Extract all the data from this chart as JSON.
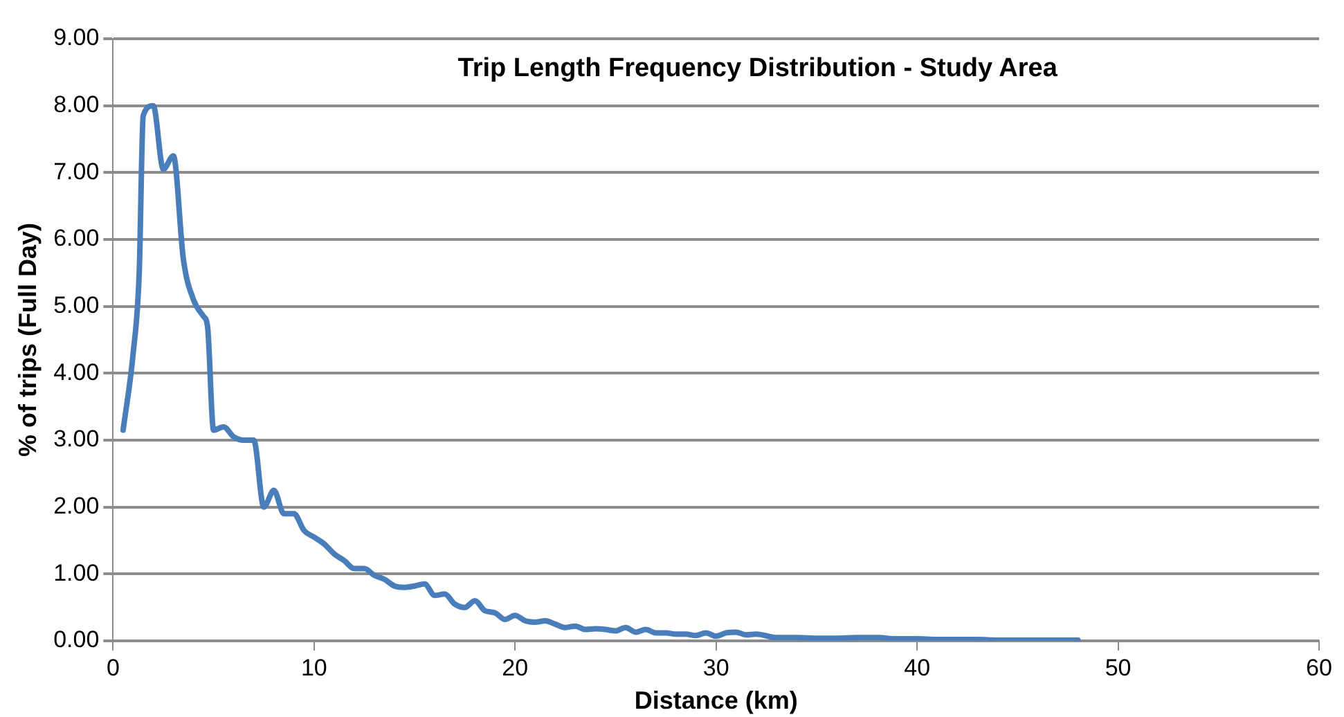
{
  "chart_data": {
    "type": "line",
    "title": "Trip Length Frequency Distribution - Study Area",
    "xlabel": "Distance (km)",
    "ylabel": "% of trips (Full Day)",
    "xlim": [
      0,
      60
    ],
    "xticks": [
      0,
      10,
      20,
      30,
      40,
      50,
      60
    ],
    "ylim": [
      0,
      9
    ],
    "yticks": [
      {
        "value": 0,
        "label": "0.00"
      },
      {
        "value": 1,
        "label": "1.00"
      },
      {
        "value": 2,
        "label": "2.00"
      },
      {
        "value": 3,
        "label": "3.00"
      },
      {
        "value": 4,
        "label": "4.00"
      },
      {
        "value": 5,
        "label": "5.00"
      },
      {
        "value": 6,
        "label": "6.00"
      },
      {
        "value": 7,
        "label": "7.00"
      },
      {
        "value": 8,
        "label": "8.00"
      },
      {
        "value": 9,
        "label": "9.00"
      }
    ],
    "grid": "y",
    "legend": false,
    "marker": "none",
    "line_style": "solid",
    "series": [
      {
        "color": "#4a7ebb",
        "x": [
          0.5,
          1.0,
          1.3,
          1.5,
          2.0,
          2.5,
          3.0,
          3.5,
          4.0,
          4.5,
          4.7,
          5.0,
          5.5,
          6.0,
          6.5,
          7.0,
          7.5,
          8.0,
          8.5,
          9.0,
          9.5,
          10,
          10.5,
          11,
          11.5,
          12,
          12.5,
          13,
          13.5,
          14,
          14.5,
          15,
          15.5,
          16,
          16.5,
          17,
          17.5,
          18,
          18.5,
          19,
          19.5,
          20,
          20.5,
          21,
          21.5,
          22,
          22.5,
          23,
          23.5,
          24,
          24.5,
          25,
          25.5,
          26,
          26.5,
          27,
          27.5,
          28,
          28.5,
          29,
          29.5,
          30,
          30.5,
          31,
          31.5,
          32,
          33,
          34,
          35,
          36,
          37,
          38,
          39,
          40,
          41,
          42,
          43,
          44,
          45,
          46,
          47,
          48
        ],
        "values": [
          3.15,
          4.3,
          5.5,
          7.85,
          8.0,
          7.05,
          7.25,
          5.7,
          5.1,
          4.85,
          4.7,
          3.15,
          3.2,
          3.05,
          3.0,
          3.0,
          2.0,
          2.25,
          1.9,
          1.9,
          1.65,
          1.55,
          1.45,
          1.3,
          1.2,
          1.08,
          1.08,
          0.98,
          0.92,
          0.82,
          0.8,
          0.82,
          0.85,
          0.68,
          0.7,
          0.55,
          0.5,
          0.6,
          0.45,
          0.42,
          0.32,
          0.38,
          0.3,
          0.28,
          0.3,
          0.25,
          0.2,
          0.22,
          0.17,
          0.18,
          0.17,
          0.15,
          0.2,
          0.13,
          0.17,
          0.12,
          0.12,
          0.1,
          0.1,
          0.08,
          0.12,
          0.07,
          0.12,
          0.13,
          0.09,
          0.1,
          0.05,
          0.05,
          0.04,
          0.04,
          0.05,
          0.05,
          0.03,
          0.03,
          0.02,
          0.02,
          0.02,
          0.01,
          0.01,
          0.01,
          0.01,
          0.01
        ]
      }
    ]
  }
}
